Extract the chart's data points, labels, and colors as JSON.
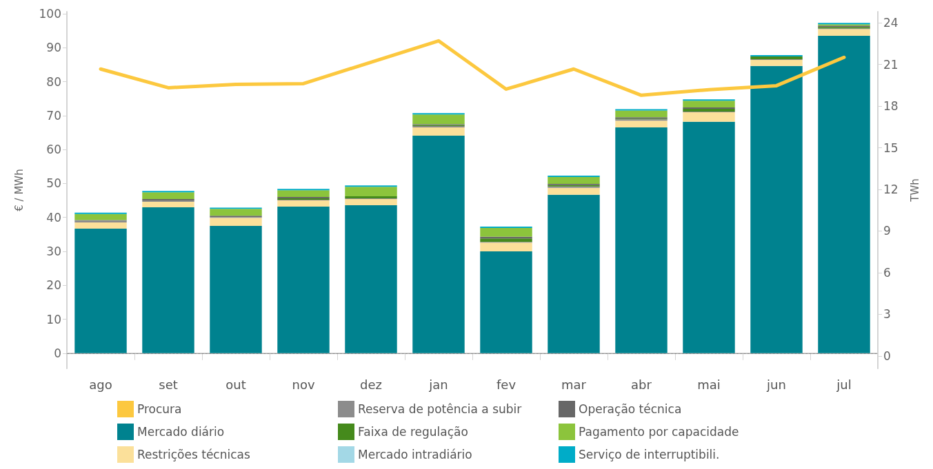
{
  "chart_data": {
    "type": "bar",
    "stacked": true,
    "categories": [
      "ago",
      "set",
      "out",
      "nov",
      "dez",
      "jan",
      "fev",
      "mar",
      "abr",
      "mai",
      "jun",
      "jul"
    ],
    "ylabel": "€ / MWh",
    "y2label": "TWh",
    "ylim": [
      -4.5,
      100.6
    ],
    "yticks": [
      0,
      10,
      20,
      30,
      40,
      50,
      60,
      70,
      80,
      90,
      100
    ],
    "y2lim": [
      -0.9,
      24.8
    ],
    "y2ticks": [
      0,
      3,
      6,
      9,
      12,
      15,
      18,
      21,
      24
    ],
    "grid": false,
    "legend": "bottom",
    "ref_lines": [
      {
        "axis": "y",
        "value": 0,
        "color": "#555555",
        "line_style": "dotted"
      }
    ],
    "series": [
      {
        "name": "Procura",
        "type": "line",
        "axis": "y2",
        "color": "#fcc83f",
        "marker": "none",
        "values": [
          20.67,
          19.32,
          19.57,
          19.62,
          21.16,
          22.7,
          19.22,
          20.67,
          18.78,
          19.18,
          19.47,
          21.51
        ]
      },
      {
        "name": "Mercado diário",
        "color": "#00828f",
        "values": [
          36.7,
          43.0,
          37.5,
          43.2,
          43.6,
          64.1,
          30.0,
          46.7,
          66.5,
          68.2,
          84.6,
          93.5
        ]
      },
      {
        "name": "Restrições técnicas",
        "color": "#fbe09a",
        "values": [
          1.8,
          1.6,
          2.4,
          1.8,
          1.8,
          2.4,
          2.6,
          2.0,
          2.0,
          2.8,
          1.8,
          2.0
        ]
      },
      {
        "name": "Reserva de potência a subir",
        "color": "#8c8c8c",
        "values": [
          0.5,
          0.4,
          0.2,
          0.2,
          0.2,
          0.4,
          0.2,
          0.4,
          0.4,
          0.2,
          0.2,
          0.2
        ]
      },
      {
        "name": "Faixa de regulação",
        "color": "#458a1c",
        "values": [
          null,
          null,
          null,
          0.4,
          0.6,
          0.3,
          1.0,
          0.4,
          0.2,
          0.8,
          0.8,
          0.4
        ]
      },
      {
        "name": "Mercado intradiário",
        "color": "#a3d8e6",
        "values": [
          null,
          null,
          null,
          null,
          null,
          null,
          null,
          null,
          null,
          null,
          null,
          null
        ]
      },
      {
        "name": "Operação técnica",
        "color": "#676767",
        "values": [
          0.2,
          0.4,
          0.4,
          0.4,
          null,
          0.3,
          0.5,
          0.4,
          0.4,
          0.4,
          null,
          0.4
        ]
      },
      {
        "name": "Pagamento por capacidade",
        "color": "#8cc43c",
        "values": [
          1.8,
          2.0,
          2.0,
          2.0,
          2.8,
          2.8,
          2.6,
          2.0,
          2.0,
          2.0,
          null,
          0.4
        ]
      },
      {
        "name": "Serviço de interruptibili.",
        "color": "#00acc8",
        "values": [
          0.4,
          0.4,
          0.4,
          0.4,
          0.4,
          0.4,
          0.4,
          0.4,
          0.4,
          0.4,
          0.4,
          0.4
        ]
      }
    ]
  }
}
